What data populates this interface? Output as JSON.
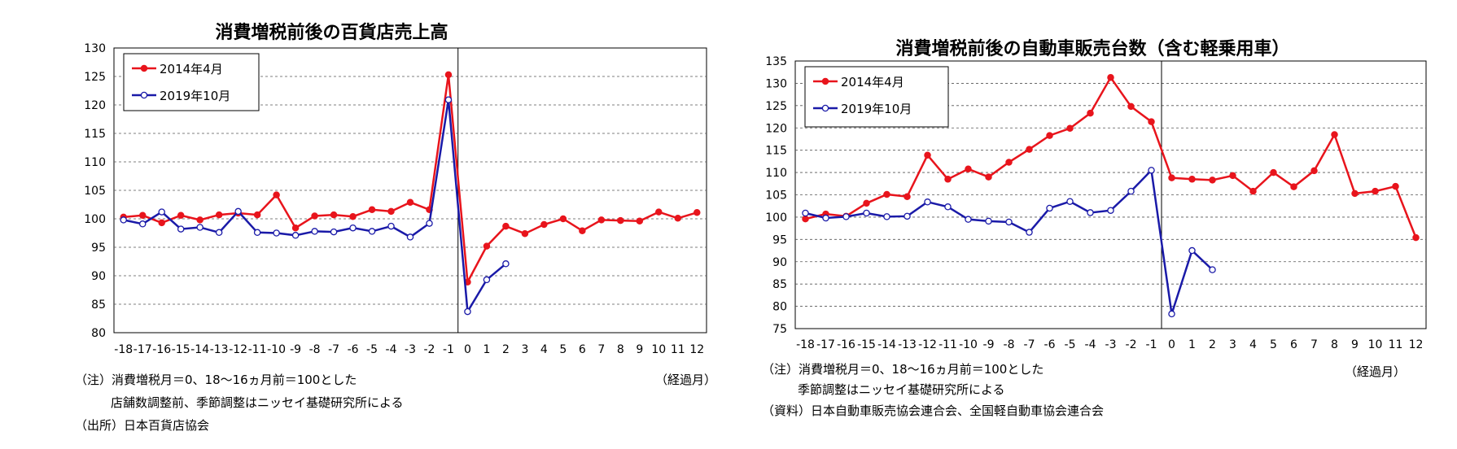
{
  "charts": [
    {
      "title": "消費増税前後の百貨店売上高",
      "xunit": "（経過月）",
      "notes": [
        "（注）消費増税月＝0、18～16ヵ月前＝100とした",
        "店舗数調整前、季節調整はニッセイ基礎研究所による",
        "（出所）日本百貨店協会"
      ]
    },
    {
      "title": "消費増税前後の自動車販売台数（含む軽乗用車）",
      "xunit": "（経過月）",
      "notes": [
        "（注）消費増税月＝0、18～16ヵ月前＝100とした",
        "季節調整はニッセイ基礎研究所による",
        "（資料）日本自動車販売協会連合会、全国軽自動車協会連合会"
      ]
    }
  ],
  "chart_data": [
    {
      "type": "line",
      "title": "消費増税前後の百貨店売上高",
      "x": [
        -18,
        -17,
        -16,
        -15,
        -14,
        -13,
        -12,
        -11,
        -10,
        -9,
        -8,
        -7,
        -6,
        -5,
        -4,
        -3,
        -2,
        -1,
        0,
        1,
        2,
        3,
        4,
        5,
        6,
        7,
        8,
        9,
        10,
        11,
        12
      ],
      "ylim": [
        80,
        130
      ],
      "yticks": [
        80,
        85,
        90,
        95,
        100,
        105,
        110,
        115,
        120,
        125,
        130
      ],
      "grid": true,
      "vline_at": 0,
      "legend_placement": "top-left",
      "series": [
        {
          "name": "2014年4月",
          "color": "#e8141c",
          "marker": "filled",
          "values": [
            100.3,
            100.6,
            99.3,
            100.6,
            99.8,
            100.7,
            101.0,
            100.7,
            104.2,
            98.4,
            100.5,
            100.7,
            100.4,
            101.6,
            101.3,
            102.9,
            101.6,
            125.3,
            88.9,
            95.2,
            98.7,
            97.4,
            99.0,
            100.0,
            97.9,
            99.8,
            99.7,
            99.6,
            101.2,
            100.1,
            101.1
          ]
        },
        {
          "name": "2019年10月",
          "color": "#1a1aa8",
          "marker": "open",
          "values": [
            99.8,
            99.1,
            101.2,
            98.2,
            98.5,
            97.6,
            101.3,
            97.6,
            97.5,
            97.1,
            97.8,
            97.7,
            98.4,
            97.8,
            98.7,
            96.8,
            99.2,
            120.9,
            83.7,
            89.3,
            92.1,
            null,
            null,
            null,
            null,
            null,
            null,
            null,
            null,
            null,
            null
          ]
        }
      ]
    },
    {
      "type": "line",
      "title": "消費増税前後の自動車販売台数（含む軽乗用車）",
      "x": [
        -18,
        -17,
        -16,
        -15,
        -14,
        -13,
        -12,
        -11,
        -10,
        -9,
        -8,
        -7,
        -6,
        -5,
        -4,
        -3,
        -2,
        -1,
        0,
        1,
        2,
        3,
        4,
        5,
        6,
        7,
        8,
        9,
        10,
        11,
        12
      ],
      "ylim": [
        75,
        135
      ],
      "yticks": [
        75,
        80,
        85,
        90,
        95,
        100,
        105,
        110,
        115,
        120,
        125,
        130,
        135
      ],
      "grid": true,
      "vline_at": 0,
      "legend_placement": "top-left",
      "series": [
        {
          "name": "2014年4月",
          "color": "#e8141c",
          "marker": "filled",
          "values": [
            99.6,
            100.7,
            100.2,
            103.1,
            105.1,
            104.6,
            113.9,
            108.5,
            110.8,
            109.0,
            112.3,
            115.2,
            118.3,
            119.9,
            123.3,
            131.3,
            124.8,
            121.4,
            108.8,
            108.5,
            108.3,
            109.3,
            105.8,
            110.0,
            106.8,
            110.4,
            118.5,
            105.3,
            105.8,
            106.9,
            95.4
          ]
        },
        {
          "name": "2019年10月",
          "color": "#1a1aa8",
          "marker": "open",
          "values": [
            100.9,
            99.8,
            100.1,
            100.9,
            100.1,
            100.2,
            103.4,
            102.3,
            99.5,
            99.1,
            98.9,
            96.6,
            102.0,
            103.5,
            101.0,
            101.5,
            105.8,
            110.5,
            78.3,
            92.5,
            88.2,
            null,
            null,
            null,
            null,
            null,
            null,
            null,
            null,
            null,
            null
          ]
        }
      ]
    }
  ]
}
